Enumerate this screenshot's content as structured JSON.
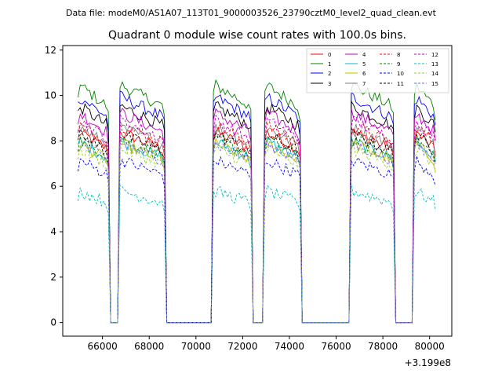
{
  "header": {
    "data_file": "Data file: modeM0/AS1A07_113T01_9000003526_23790cztM0_level2_quad_clean.evt"
  },
  "chart_data": {
    "type": "line",
    "title": "Quadrant 0 module wise count rates with 100.0s bins.",
    "xlabel": "",
    "ylabel": "",
    "x_offset_label": "+3.199e8",
    "xlim": [
      64300,
      80950
    ],
    "ylim": [
      -0.6,
      12.2
    ],
    "x_ticks": [
      66000,
      68000,
      70000,
      72000,
      74000,
      76000,
      78000,
      80000
    ],
    "x_tick_labels": [
      "66000",
      "68000",
      "70000",
      "72000",
      "74000",
      "76000",
      "78000",
      "80000"
    ],
    "y_ticks": [
      0,
      2,
      4,
      6,
      8,
      10,
      12
    ],
    "y_tick_labels": [
      "0",
      "2",
      "4",
      "6",
      "8",
      "10",
      "12"
    ],
    "grid": false,
    "legend_position": "top-right",
    "legend_columns": 4,
    "gti_segments": [
      [
        64950,
        66250
      ],
      [
        66700,
        68650
      ],
      [
        70750,
        72400
      ],
      [
        72950,
        74450
      ],
      [
        76600,
        78450
      ],
      [
        79350,
        80250
      ]
    ],
    "bin_size_s": 100,
    "series": [
      {
        "name": "0",
        "color": "#ff0000",
        "dash": "solid",
        "mean_rate": 8.1
      },
      {
        "name": "1",
        "color": "#008000",
        "dash": "solid",
        "mean_rate": 10.1
      },
      {
        "name": "2",
        "color": "#0000ff",
        "dash": "solid",
        "mean_rate": 9.6
      },
      {
        "name": "3",
        "color": "#000000",
        "dash": "solid",
        "mean_rate": 9.2
      },
      {
        "name": "4",
        "color": "#bf00bf",
        "dash": "solid",
        "mean_rate": 8.9
      },
      {
        "name": "5",
        "color": "#00bfbf",
        "dash": "solid",
        "mean_rate": 7.7
      },
      {
        "name": "6",
        "color": "#bfbf00",
        "dash": "solid",
        "mean_rate": 7.6
      },
      {
        "name": "7",
        "color": "#808080",
        "dash": "solid",
        "mean_rate": 8.3
      },
      {
        "name": "8",
        "color": "#ff0000",
        "dash": "dashed",
        "mean_rate": 8.4
      },
      {
        "name": "9",
        "color": "#008000",
        "dash": "dashed",
        "mean_rate": 7.8
      },
      {
        "name": "10",
        "color": "#0000ff",
        "dash": "dashed",
        "mean_rate": 6.9
      },
      {
        "name": "11",
        "color": "#000000",
        "dash": "dashed",
        "mean_rate": 8.0
      },
      {
        "name": "12",
        "color": "#bf00bf",
        "dash": "dashed",
        "mean_rate": 8.6
      },
      {
        "name": "13",
        "color": "#00bfbf",
        "dash": "dashed",
        "mean_rate": 5.6
      },
      {
        "name": "14",
        "color": "#9acd32",
        "dash": "dashed",
        "mean_rate": 7.4
      },
      {
        "name": "15",
        "color": "#7b68ee",
        "dash": "dashed",
        "mean_rate": 7.6
      }
    ]
  }
}
